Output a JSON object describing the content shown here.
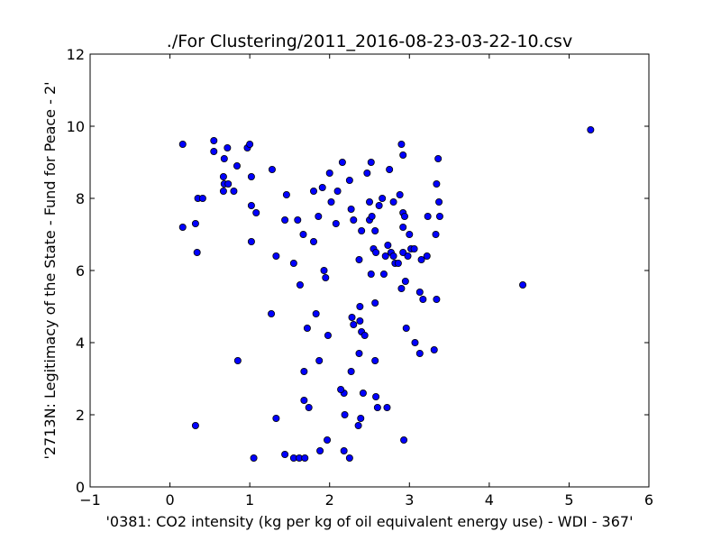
{
  "chart_data": {
    "type": "scatter",
    "title": "./For Clustering/2011_2016-08-23-03-22-10.csv",
    "xlabel": "'0381: CO2 intensity  (kg per kg of oil equivalent energy use) - WDI - 367'",
    "ylabel": "'2713N: Legitimacy of the State - Fund for Peace - 2'",
    "xlim": [
      -1,
      6
    ],
    "ylim": [
      0,
      12
    ],
    "x_ticks": [
      -1,
      0,
      1,
      2,
      3,
      4,
      5,
      6
    ],
    "y_ticks": [
      0,
      2,
      4,
      6,
      8,
      10,
      12
    ],
    "x_tick_labels": [
      "−1",
      "0",
      "1",
      "2",
      "3",
      "4",
      "5",
      "6"
    ],
    "y_tick_labels": [
      "0",
      "2",
      "4",
      "6",
      "8",
      "10",
      "12"
    ],
    "grid": false,
    "marker_color": "#0000ff",
    "points": [
      [
        0.16,
        9.5
      ],
      [
        0.55,
        9.6
      ],
      [
        0.55,
        9.3
      ],
      [
        0.68,
        9.1
      ],
      [
        0.72,
        9.4
      ],
      [
        0.97,
        9.4
      ],
      [
        1.0,
        9.5
      ],
      [
        0.84,
        8.9
      ],
      [
        0.67,
        8.6
      ],
      [
        1.02,
        8.6
      ],
      [
        0.68,
        8.4
      ],
      [
        0.73,
        8.4
      ],
      [
        0.67,
        8.2
      ],
      [
        0.8,
        8.2
      ],
      [
        0.35,
        8.0
      ],
      [
        0.41,
        8.0
      ],
      [
        0.32,
        7.3
      ],
      [
        0.16,
        7.2
      ],
      [
        0.34,
        6.5
      ],
      [
        0.85,
        3.5
      ],
      [
        0.32,
        1.7
      ],
      [
        1.05,
        0.8
      ],
      [
        1.02,
        7.8
      ],
      [
        1.08,
        7.6
      ],
      [
        1.02,
        6.8
      ],
      [
        1.28,
        8.8
      ],
      [
        1.46,
        8.1
      ],
      [
        1.44,
        7.4
      ],
      [
        1.6,
        7.4
      ],
      [
        1.33,
        6.4
      ],
      [
        1.67,
        7.0
      ],
      [
        1.55,
        6.2
      ],
      [
        1.63,
        5.6
      ],
      [
        1.27,
        4.8
      ],
      [
        1.33,
        1.9
      ],
      [
        1.44,
        0.9
      ],
      [
        1.55,
        0.8
      ],
      [
        1.62,
        0.8
      ],
      [
        1.69,
        0.8
      ],
      [
        1.72,
        4.4
      ],
      [
        1.68,
        3.2
      ],
      [
        1.68,
        2.4
      ],
      [
        1.74,
        2.2
      ],
      [
        1.8,
        8.2
      ],
      [
        1.86,
        7.5
      ],
      [
        1.8,
        6.8
      ],
      [
        1.93,
        6.0
      ],
      [
        1.95,
        5.8
      ],
      [
        1.83,
        4.8
      ],
      [
        1.98,
        4.2
      ],
      [
        1.87,
        3.5
      ],
      [
        1.88,
        1.0
      ],
      [
        1.97,
        1.3
      ],
      [
        1.91,
        8.3
      ],
      [
        2.0,
        8.7
      ],
      [
        2.02,
        7.9
      ],
      [
        2.1,
        8.2
      ],
      [
        2.16,
        9.0
      ],
      [
        2.08,
        7.3
      ],
      [
        2.25,
        8.5
      ],
      [
        2.27,
        7.7
      ],
      [
        2.3,
        7.4
      ],
      [
        2.37,
        6.3
      ],
      [
        2.4,
        7.1
      ],
      [
        2.38,
        5.0
      ],
      [
        2.28,
        4.7
      ],
      [
        2.3,
        4.5
      ],
      [
        2.38,
        4.6
      ],
      [
        2.4,
        4.3
      ],
      [
        2.44,
        4.2
      ],
      [
        2.37,
        3.7
      ],
      [
        2.27,
        3.2
      ],
      [
        2.18,
        2.6
      ],
      [
        2.14,
        2.7
      ],
      [
        2.19,
        2.0
      ],
      [
        2.39,
        1.9
      ],
      [
        2.36,
        1.7
      ],
      [
        2.18,
        1.0
      ],
      [
        2.25,
        0.8
      ],
      [
        2.42,
        2.6
      ],
      [
        2.47,
        8.7
      ],
      [
        2.52,
        9.0
      ],
      [
        2.5,
        7.9
      ],
      [
        2.5,
        7.4
      ],
      [
        2.53,
        7.5
      ],
      [
        2.55,
        6.6
      ],
      [
        2.58,
        6.5
      ],
      [
        2.62,
        7.8
      ],
      [
        2.66,
        8.0
      ],
      [
        2.57,
        7.1
      ],
      [
        2.52,
        5.9
      ],
      [
        2.57,
        5.1
      ],
      [
        2.57,
        3.5
      ],
      [
        2.58,
        2.5
      ],
      [
        2.6,
        2.2
      ],
      [
        2.7,
        6.4
      ],
      [
        2.73,
        6.7
      ],
      [
        2.75,
        8.8
      ],
      [
        2.8,
        7.9
      ],
      [
        2.77,
        6.5
      ],
      [
        2.8,
        6.4
      ],
      [
        2.82,
        6.2
      ],
      [
        2.86,
        6.2
      ],
      [
        2.68,
        5.9
      ],
      [
        2.88,
        8.1
      ],
      [
        2.9,
        9.5
      ],
      [
        2.92,
        9.2
      ],
      [
        2.92,
        7.6
      ],
      [
        2.94,
        7.5
      ],
      [
        2.92,
        7.2
      ],
      [
        2.92,
        6.5
      ],
      [
        2.98,
        6.4
      ],
      [
        3.02,
        6.6
      ],
      [
        3.06,
        6.6
      ],
      [
        3.0,
        7.0
      ],
      [
        2.9,
        5.5
      ],
      [
        2.95,
        5.7
      ],
      [
        2.96,
        4.4
      ],
      [
        3.07,
        4.0
      ],
      [
        3.13,
        3.7
      ],
      [
        3.13,
        5.4
      ],
      [
        3.17,
        5.2
      ],
      [
        3.15,
        6.3
      ],
      [
        3.22,
        6.4
      ],
      [
        3.23,
        7.5
      ],
      [
        3.33,
        7.0
      ],
      [
        3.34,
        8.4
      ],
      [
        3.36,
        9.1
      ],
      [
        3.37,
        7.9
      ],
      [
        3.38,
        7.5
      ],
      [
        3.34,
        5.2
      ],
      [
        3.31,
        3.8
      ],
      [
        2.72,
        2.2
      ],
      [
        2.93,
        1.3
      ],
      [
        4.42,
        5.6
      ],
      [
        5.27,
        9.9
      ]
    ]
  }
}
